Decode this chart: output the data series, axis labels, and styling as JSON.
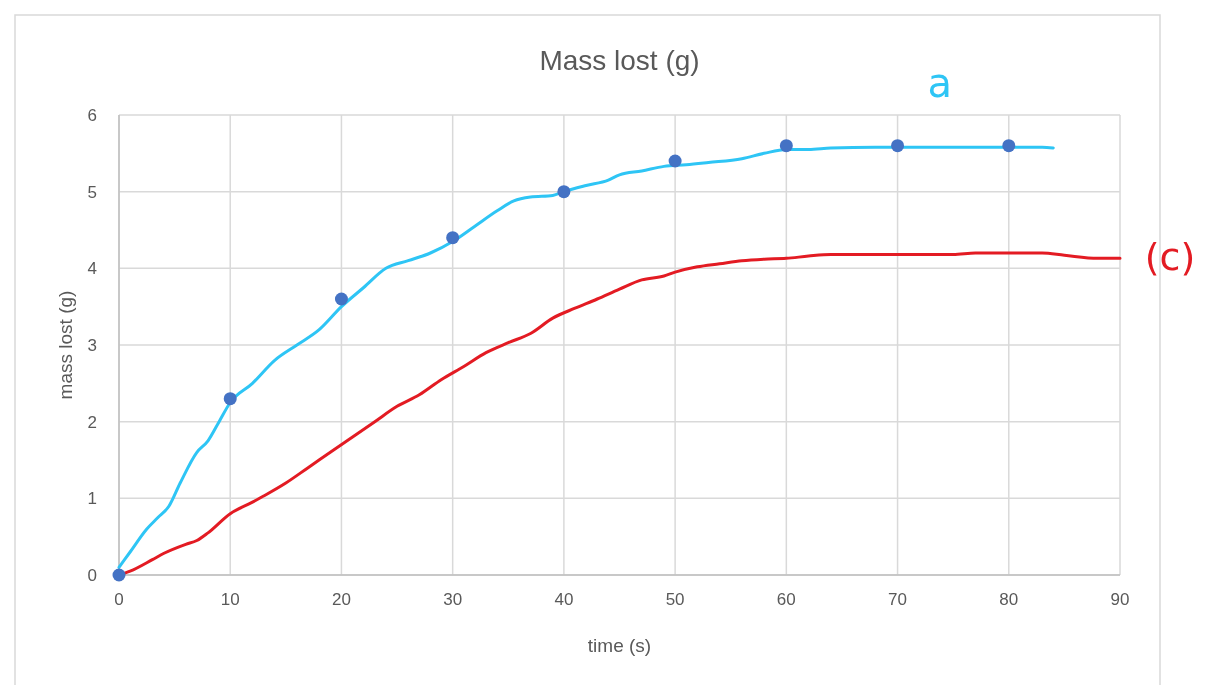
{
  "chart_data": {
    "type": "scatter",
    "title": "Mass lost (g)",
    "xlabel": "time (s)",
    "ylabel": "mass lost (g)",
    "xlim": [
      0,
      90
    ],
    "xticks": [
      0,
      10,
      20,
      30,
      40,
      50,
      60,
      70,
      80,
      90
    ],
    "ylim": [
      0,
      6
    ],
    "yticks": [
      0,
      1,
      2,
      3,
      4,
      5,
      6
    ],
    "grid": true,
    "annotations": [
      "a",
      "(c)"
    ],
    "series": [
      {
        "type": "line",
        "color": "#2ec5f5",
        "x": [
          0,
          1,
          2.5,
          3.5,
          4.5,
          5.5,
          7,
          8,
          9,
          10,
          12,
          14,
          16,
          18,
          20,
          22,
          24,
          26,
          28,
          30,
          32,
          34,
          35.5,
          37,
          39,
          40,
          42,
          44,
          45,
          47,
          49,
          51,
          53,
          56,
          58,
          60,
          62,
          64,
          68,
          75,
          80,
          83,
          84
        ],
        "values": [
          0.1,
          0.3,
          0.6,
          0.75,
          0.9,
          1.2,
          1.6,
          1.75,
          2.0,
          2.25,
          2.5,
          2.8,
          3.0,
          3.2,
          3.5,
          3.75,
          4.0,
          4.1,
          4.2,
          4.35,
          4.55,
          4.75,
          4.88,
          4.93,
          4.95,
          5.0,
          5.08,
          5.15,
          5.22,
          5.27,
          5.33,
          5.35,
          5.38,
          5.43,
          5.5,
          5.55,
          5.55,
          5.57,
          5.58,
          5.58,
          5.58,
          5.58,
          5.57
        ]
      },
      {
        "type": "line",
        "color": "#e31b23",
        "x": [
          0,
          1,
          3,
          4,
          6,
          7,
          8,
          10,
          12,
          13,
          15,
          17,
          19,
          21,
          23,
          25,
          27,
          29,
          31,
          33,
          35,
          37,
          39,
          41,
          43,
          45,
          47,
          49,
          50,
          52,
          54,
          56,
          58,
          60,
          62,
          64,
          70,
          75,
          77,
          83,
          85,
          88,
          90
        ],
        "values": [
          0,
          0.05,
          0.2,
          0.28,
          0.4,
          0.45,
          0.55,
          0.8,
          0.95,
          1.03,
          1.2,
          1.4,
          1.6,
          1.8,
          2.0,
          2.2,
          2.35,
          2.55,
          2.72,
          2.9,
          3.03,
          3.15,
          3.35,
          3.48,
          3.6,
          3.73,
          3.85,
          3.9,
          3.95,
          4.02,
          4.06,
          4.1,
          4.12,
          4.13,
          4.16,
          4.18,
          4.18,
          4.18,
          4.2,
          4.2,
          4.17,
          4.13,
          4.13
        ]
      },
      {
        "marker": "circle",
        "color": "#4472c4",
        "x": [
          0,
          10,
          20,
          30,
          40,
          50,
          60,
          70,
          80
        ],
        "values": [
          0,
          2.3,
          3.6,
          4.4,
          5.0,
          5.4,
          5.6,
          5.6,
          5.6
        ]
      }
    ]
  }
}
